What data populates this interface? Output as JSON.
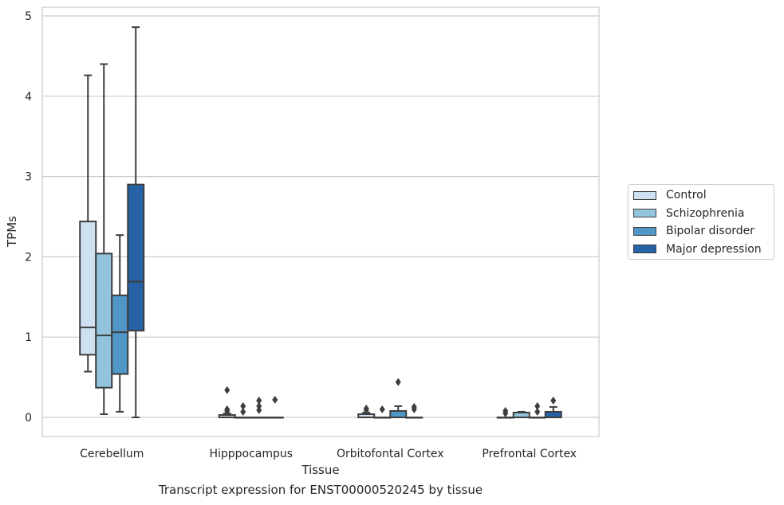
{
  "chart_data": {
    "type": "box",
    "title": "Transcript expression for ENST00000520245 by tissue",
    "xlabel": "Tissue",
    "ylabel": "TPMs",
    "ylim": [
      -0.24,
      5.1
    ],
    "yticks": [
      0,
      1,
      2,
      3,
      4,
      5
    ],
    "grid": true,
    "legend_position": "right",
    "categories": [
      "Cerebellum",
      "Hipppocampus",
      "Orbitofontal Cortex",
      "Prefrontal Cortex"
    ],
    "series": [
      {
        "name": "Control",
        "color": "#cfe0f1",
        "boxes": [
          {
            "whislo": 0.57,
            "q1": 0.78,
            "med": 1.12,
            "q3": 2.44,
            "whishi": 4.26,
            "fliers": []
          },
          {
            "whislo": 0.0,
            "q1": 0.0,
            "med": 0.0,
            "q3": 0.03,
            "whishi": 0.05,
            "fliers": [
              0.08,
              0.1,
              0.34
            ]
          },
          {
            "whislo": 0.0,
            "q1": 0.0,
            "med": 0.0,
            "q3": 0.04,
            "whishi": 0.06,
            "fliers": [
              0.09,
              0.11
            ]
          },
          {
            "whislo": 0.0,
            "q1": 0.0,
            "med": 0.0,
            "q3": 0.0,
            "whishi": 0.0,
            "fliers": [
              0.05,
              0.08
            ]
          }
        ]
      },
      {
        "name": "Schizophrenia",
        "color": "#93c4de",
        "boxes": [
          {
            "whislo": 0.04,
            "q1": 0.37,
            "med": 1.02,
            "q3": 2.04,
            "whishi": 4.4,
            "fliers": []
          },
          {
            "whislo": 0.0,
            "q1": 0.0,
            "med": 0.0,
            "q3": 0.0,
            "whishi": 0.0,
            "fliers": [
              0.07,
              0.14
            ]
          },
          {
            "whislo": 0.0,
            "q1": 0.0,
            "med": 0.0,
            "q3": 0.0,
            "whishi": 0.0,
            "fliers": [
              0.1
            ]
          },
          {
            "whislo": 0.0,
            "q1": 0.0,
            "med": 0.0,
            "q3": 0.06,
            "whishi": 0.07,
            "fliers": []
          }
        ]
      },
      {
        "name": "Bipolar disorder",
        "color": "#5097c7",
        "boxes": [
          {
            "whislo": 0.07,
            "q1": 0.54,
            "med": 1.06,
            "q3": 1.52,
            "whishi": 2.27,
            "fliers": []
          },
          {
            "whislo": 0.0,
            "q1": 0.0,
            "med": 0.0,
            "q3": 0.0,
            "whishi": 0.0,
            "fliers": [
              0.09,
              0.14,
              0.21
            ]
          },
          {
            "whislo": 0.0,
            "q1": 0.0,
            "med": 0.0,
            "q3": 0.08,
            "whishi": 0.14,
            "fliers": [
              0.44
            ]
          },
          {
            "whislo": 0.0,
            "q1": 0.0,
            "med": 0.0,
            "q3": 0.0,
            "whishi": 0.0,
            "fliers": [
              0.07,
              0.14
            ]
          }
        ]
      },
      {
        "name": "Major depression",
        "color": "#2563a6",
        "boxes": [
          {
            "whislo": 0.0,
            "q1": 1.08,
            "med": 1.69,
            "q3": 2.9,
            "whishi": 4.86,
            "fliers": []
          },
          {
            "whislo": 0.0,
            "q1": 0.0,
            "med": 0.0,
            "q3": 0.0,
            "whishi": 0.0,
            "fliers": [
              0.22
            ]
          },
          {
            "whislo": 0.0,
            "q1": 0.0,
            "med": 0.0,
            "q3": 0.0,
            "whishi": 0.0,
            "fliers": [
              0.1,
              0.13
            ]
          },
          {
            "whislo": 0.0,
            "q1": 0.0,
            "med": 0.0,
            "q3": 0.07,
            "whishi": 0.13,
            "fliers": [
              0.21
            ]
          }
        ]
      }
    ]
  }
}
